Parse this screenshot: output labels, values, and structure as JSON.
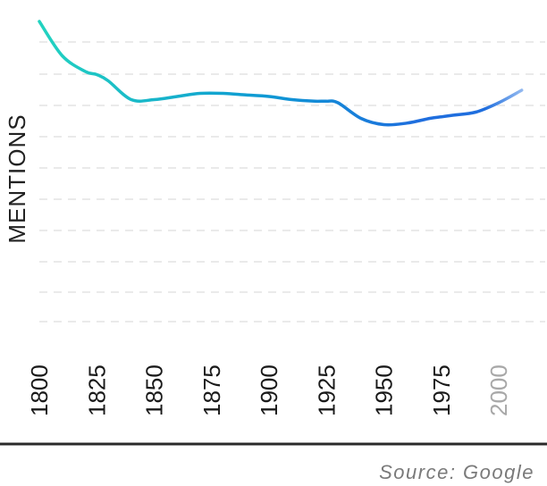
{
  "chart_data": {
    "type": "line",
    "title": "",
    "xlabel": "",
    "ylabel": "MENTIONS",
    "x_ticks": [
      "1800",
      "1825",
      "1850",
      "1875",
      "1900",
      "1925",
      "1950",
      "1975",
      "2000"
    ],
    "faded_ticks": [
      "2000"
    ],
    "xlim": [
      1800,
      2010
    ],
    "ylim": [
      0,
      100
    ],
    "grid": "horizontal-dashed",
    "series": [
      {
        "x": [
          1800,
          1810,
          1820,
          1825,
          1830,
          1840,
          1850,
          1860,
          1870,
          1880,
          1890,
          1900,
          1910,
          1920,
          1925,
          1930,
          1940,
          1950,
          1960,
          1970,
          1975,
          1980,
          1990,
          2000,
          2010
        ],
        "values": [
          96,
          85,
          80,
          79,
          77,
          71,
          71,
          72,
          73,
          73,
          72.5,
          72,
          71,
          70.5,
          70.5,
          70,
          65,
          63,
          63.5,
          65,
          65.5,
          66,
          67,
          70,
          74
        ]
      }
    ],
    "colors": {
      "start": "#22d3c0",
      "mid": "#0e98d4",
      "late": "#1f6ede",
      "end": "#dbe8fb"
    },
    "source": "Source: Google"
  }
}
